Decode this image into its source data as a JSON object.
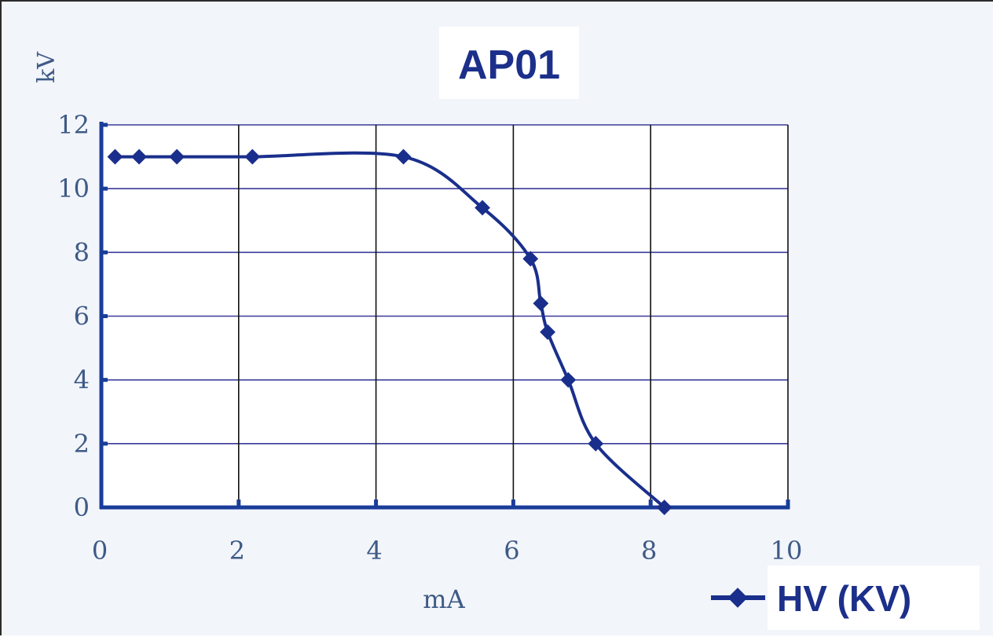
{
  "chart_data": {
    "type": "line",
    "title": "AP01",
    "xlabel": "mA",
    "ylabel": "kV",
    "xlim": [
      0,
      10
    ],
    "ylim": [
      0,
      12
    ],
    "x_ticks": [
      "0",
      "2",
      "4",
      "6",
      "8",
      "10"
    ],
    "y_ticks": [
      "0",
      "2",
      "4",
      "6",
      "8",
      "10",
      "12"
    ],
    "grid": true,
    "legend_position": "bottom-right",
    "series": [
      {
        "name": "HV (KV)",
        "x": [
          0.2,
          0.55,
          1.1,
          2.2,
          4.4,
          5.55,
          6.25,
          6.4,
          6.5,
          6.8,
          7.2,
          8.2
        ],
        "y": [
          11,
          11,
          11,
          11,
          11,
          9.4,
          7.8,
          6.4,
          5.5,
          4.0,
          2.0,
          0
        ]
      }
    ]
  },
  "colors": {
    "series": "#1a2f8c",
    "axis": "#1a3d99",
    "grid_h": "#3a3a99",
    "grid_v": "#111111",
    "tick_text": "#3e5a86",
    "title_text": "#1c2f8a"
  }
}
